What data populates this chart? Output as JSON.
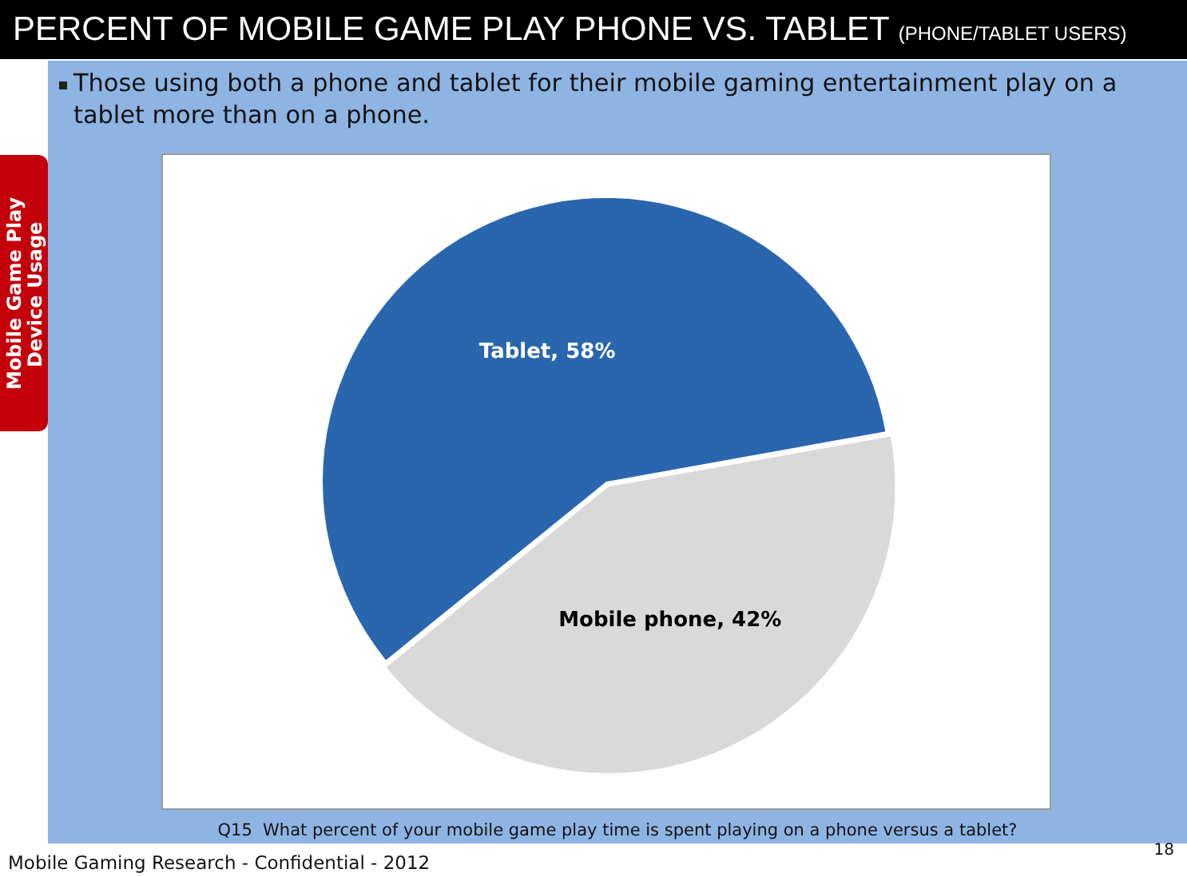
{
  "chart_data": {
    "type": "pie",
    "title": "PERCENT OF MOBILE GAME PLAY PHONE VS. TABLET",
    "subtitle": "(PHONE/TABLET USERS)",
    "categories": [
      "Tablet",
      "Mobile phone"
    ],
    "values": [
      58,
      42
    ],
    "colors": [
      "#2a66ad",
      "#d9d9d9"
    ],
    "value_labels": [
      "58%",
      "42%"
    ],
    "annotations": [
      "Those using both a phone and tablet for their mobile gaming entertainment play on a tablet more than on a phone.",
      "Mobile Game Play Device Usage",
      "Q15  What percent of your mobile game play time is spent playing on a phone versus a tablet?",
      "Mobile Gaming Research - Confidential - 2012",
      "18"
    ]
  }
}
